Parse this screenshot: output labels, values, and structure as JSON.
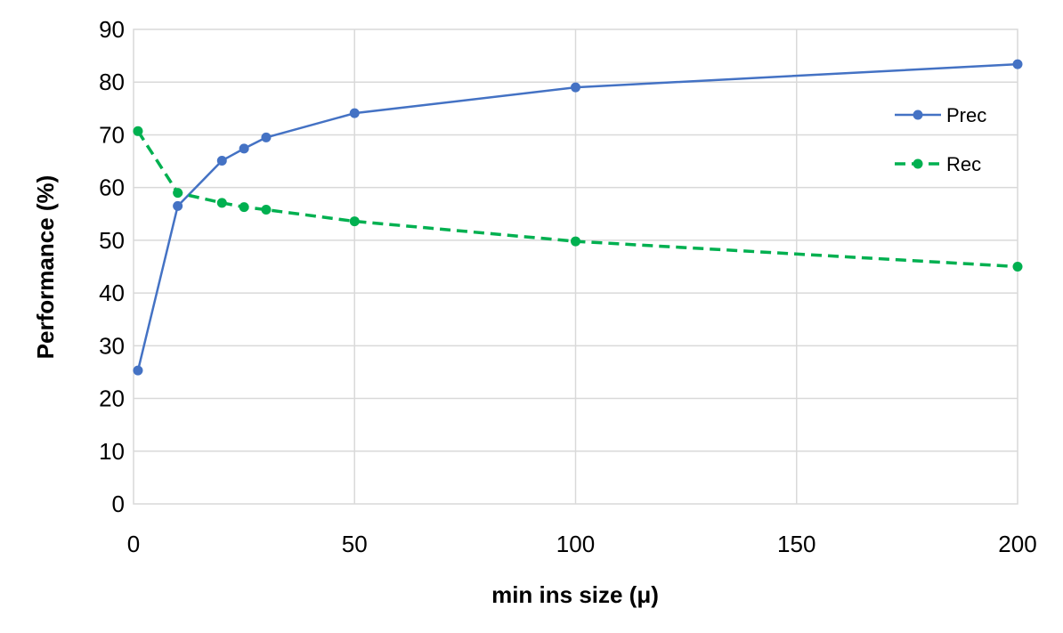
{
  "chart_data": {
    "type": "line",
    "title": "",
    "xlabel": "min ins size (μ)",
    "ylabel": "Performance (%)",
    "xlim": [
      0,
      200
    ],
    "ylim": [
      0,
      90
    ],
    "xticks": [
      0,
      50,
      100,
      150,
      200
    ],
    "yticks": [
      0,
      10,
      20,
      30,
      40,
      50,
      60,
      70,
      80,
      90
    ],
    "grid": true,
    "legend_position": "top-right",
    "series": [
      {
        "name": "Prec",
        "color": "#4472C4",
        "style": "solid",
        "x": [
          1,
          10,
          20,
          25,
          30,
          50,
          100,
          200
        ],
        "y": [
          25.3,
          56.5,
          65.1,
          67.4,
          69.5,
          74.1,
          79,
          83.4
        ]
      },
      {
        "name": "Rec",
        "color": "#00B050",
        "style": "dashed",
        "x": [
          1,
          10,
          20,
          25,
          30,
          50,
          100,
          200
        ],
        "y": [
          70.7,
          59,
          57.1,
          56.3,
          55.8,
          53.6,
          49.8,
          45
        ]
      }
    ]
  }
}
